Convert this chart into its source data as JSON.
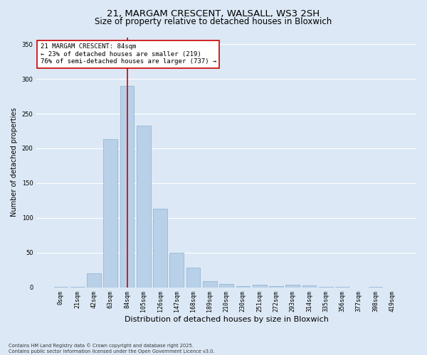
{
  "title1": "21, MARGAM CRESCENT, WALSALL, WS3 2SH",
  "title2": "Size of property relative to detached houses in Bloxwich",
  "xlabel": "Distribution of detached houses by size in Bloxwich",
  "ylabel": "Number of detached properties",
  "categories": [
    "0sqm",
    "21sqm",
    "42sqm",
    "63sqm",
    "84sqm",
    "105sqm",
    "126sqm",
    "147sqm",
    "168sqm",
    "189sqm",
    "210sqm",
    "230sqm",
    "251sqm",
    "272sqm",
    "293sqm",
    "314sqm",
    "335sqm",
    "356sqm",
    "377sqm",
    "398sqm",
    "419sqm"
  ],
  "values": [
    1,
    1,
    20,
    213,
    290,
    233,
    113,
    50,
    28,
    9,
    5,
    2,
    4,
    2,
    4,
    3,
    1,
    1,
    0,
    1,
    0
  ],
  "bar_color": "#b8d0e8",
  "bar_edge_color": "#8ab0d0",
  "vline_x": 4,
  "vline_color": "#cc0000",
  "annotation_text": "21 MARGAM CRESCENT: 84sqm\n← 23% of detached houses are smaller (219)\n76% of semi-detached houses are larger (737) →",
  "annotation_box_facecolor": "#ffffff",
  "annotation_box_edgecolor": "#cc0000",
  "ylim": [
    0,
    360
  ],
  "yticks": [
    0,
    50,
    100,
    150,
    200,
    250,
    300,
    350
  ],
  "footnote": "Contains HM Land Registry data © Crown copyright and database right 2025.\nContains public sector information licensed under the Open Government Licence v3.0.",
  "background_color": "#dce8f5",
  "plot_background_color": "#dce8f5",
  "grid_color": "#ffffff",
  "title_fontsize": 9.5,
  "subtitle_fontsize": 8.5,
  "tick_fontsize": 6,
  "ylabel_fontsize": 7,
  "xlabel_fontsize": 8,
  "annotation_fontsize": 6.5,
  "footnote_fontsize": 4.8
}
